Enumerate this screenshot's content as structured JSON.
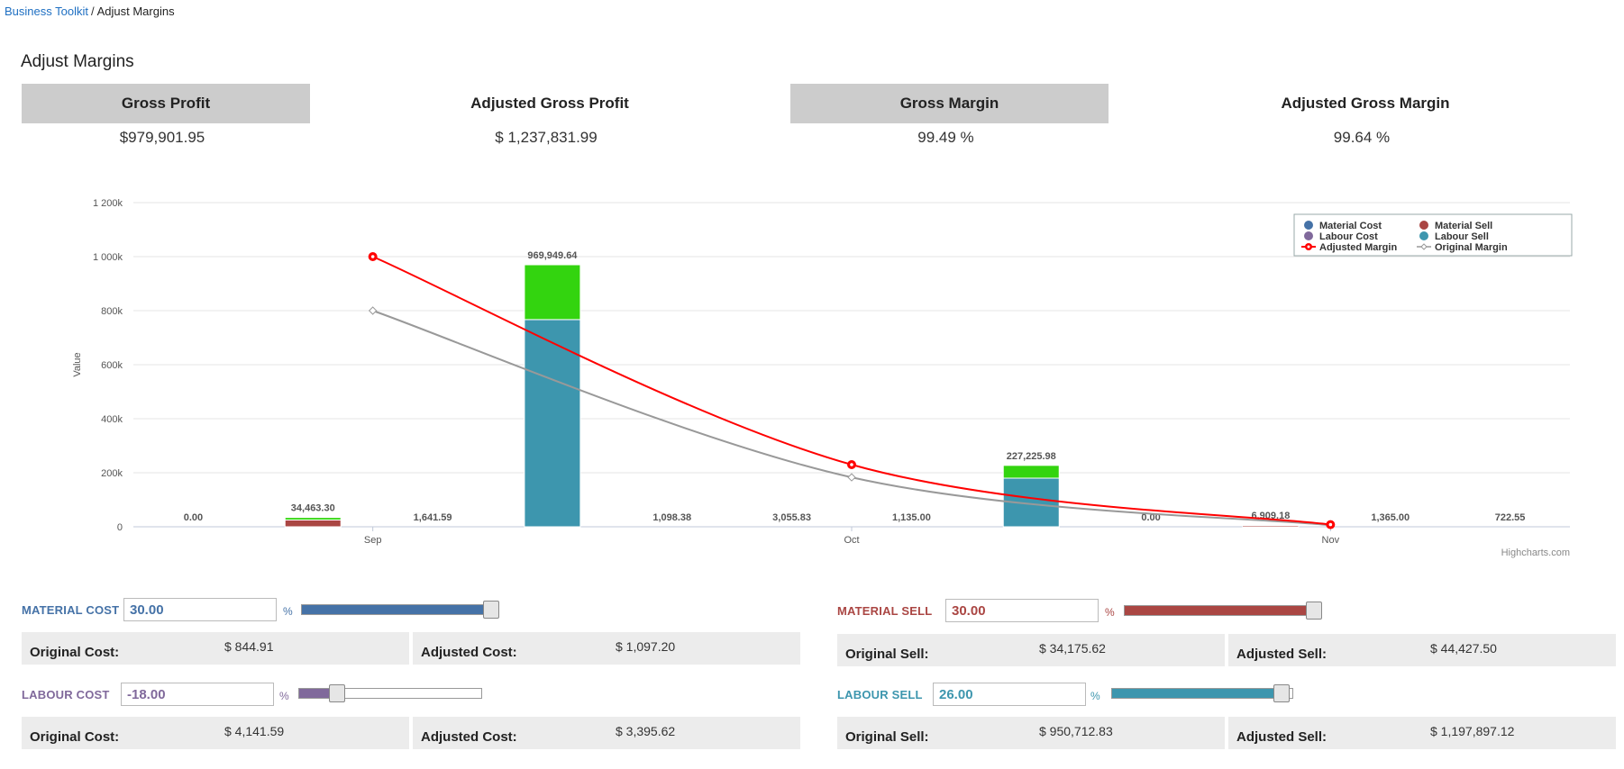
{
  "breadcrumb": {
    "parent": "Business Toolkit",
    "separator": "/",
    "current": "Adjust Margins"
  },
  "page_title": "Adjust Margins",
  "kpis": [
    {
      "label": "Gross Profit",
      "value": "$979,901.95"
    },
    {
      "label": "Adjusted Gross Profit",
      "value": "$ 1,237,831.99"
    },
    {
      "label": "Gross Margin",
      "value": "99.49 %"
    },
    {
      "label": "Adjusted Gross Margin",
      "value": "99.64 %"
    }
  ],
  "chart_data": {
    "type": "bar",
    "ylabel": "Value",
    "credit": "Highcharts.com",
    "ylim": [
      0,
      1200000
    ],
    "y_ticks": [
      0,
      200000,
      400000,
      600000,
      800000,
      1000000,
      1200000
    ],
    "y_tick_labels": [
      "0",
      "200k",
      "400k",
      "600k",
      "800k",
      "1 000k",
      "1 200k"
    ],
    "categories": [
      "Sep",
      "Oct",
      "Nov"
    ],
    "colors": {
      "material_cost": "#4572a7",
      "material_sell": "#aa4643",
      "labour_cost": "#80699b",
      "labour_sell": "#3d96ae",
      "adjusted_margin": "#ff0000",
      "original_margin": "#999999",
      "margin_stack": "#33d40f"
    },
    "legend": {
      "position": "top-right",
      "items": [
        {
          "name": "Material Cost",
          "color": "#4572a7",
          "kind": "dot"
        },
        {
          "name": "Material Sell",
          "color": "#aa4643",
          "kind": "dot"
        },
        {
          "name": "Labour Cost",
          "color": "#80699b",
          "kind": "dot"
        },
        {
          "name": "Labour Sell",
          "color": "#3d96ae",
          "kind": "dot"
        },
        {
          "name": "Adjusted Margin",
          "color": "#ff0000",
          "kind": "line-red"
        },
        {
          "name": "Original Margin",
          "color": "#999999",
          "kind": "line-grey"
        }
      ]
    },
    "columns": [
      {
        "category": 0,
        "slot": 0,
        "segments": [],
        "label": "0.00"
      },
      {
        "category": 0,
        "slot": 1,
        "segments": [
          {
            "series": "material_sell",
            "value": 25000
          },
          {
            "series": "margin_stack",
            "value": 9463.3
          }
        ],
        "label": "34,463.30"
      },
      {
        "category": 0,
        "slot": 2,
        "segments": [],
        "label": "1,641.59"
      },
      {
        "category": 0,
        "slot": 3,
        "segments": [
          {
            "series": "labour_sell",
            "value": 767000
          },
          {
            "series": "margin_stack",
            "value": 202949.64
          }
        ],
        "label": "969,949.64"
      },
      {
        "category": 1,
        "slot": 0,
        "segments": [],
        "label": "1,098.38"
      },
      {
        "category": 1,
        "slot": 1,
        "segments": [],
        "label": "3,055.83"
      },
      {
        "category": 1,
        "slot": 2,
        "segments": [],
        "label": "1,135.00"
      },
      {
        "category": 1,
        "slot": 3,
        "segments": [
          {
            "series": "labour_sell",
            "value": 180000
          },
          {
            "series": "margin_stack",
            "value": 47225.98
          }
        ],
        "label": "227,225.98"
      },
      {
        "category": 2,
        "slot": 0,
        "segments": [],
        "label": "0.00"
      },
      {
        "category": 2,
        "slot": 1,
        "segments": [
          {
            "series": "material_sell",
            "value": 5000
          },
          {
            "series": "margin_stack",
            "value": 1909.18
          }
        ],
        "label": "6,909.18"
      },
      {
        "category": 2,
        "slot": 2,
        "segments": [],
        "label": "1,365.00"
      },
      {
        "category": 2,
        "slot": 3,
        "segments": [],
        "label": "722.55"
      }
    ],
    "series_lines": [
      {
        "name": "Adjusted Margin",
        "values": [
          1000000,
          230000,
          8000
        ]
      },
      {
        "name": "Original Margin",
        "values": [
          800000,
          183000,
          6000
        ]
      }
    ]
  },
  "controls": {
    "material_cost": {
      "label": "MATERIAL COST",
      "input_value": "30.00",
      "percent_sign": "%",
      "slider_fraction": 1.0,
      "original_label": "Original Cost:",
      "original_value": "$ 844.91",
      "adjusted_label": "Adjusted Cost:",
      "adjusted_value": "$ 1,097.20"
    },
    "labour_cost": {
      "label": "LABOUR COST",
      "input_value": "-18.00",
      "percent_sign": "%",
      "slider_fraction": 0.21,
      "original_label": "Original Cost:",
      "original_value": "$ 4,141.59",
      "adjusted_label": "Adjusted Cost:",
      "adjusted_value": "$ 3,395.62"
    },
    "material_sell": {
      "label": "MATERIAL SELL",
      "input_value": "30.00",
      "percent_sign": "%",
      "slider_fraction": 1.0,
      "original_label": "Original Sell:",
      "original_value": "$ 34,175.62",
      "adjusted_label": "Adjusted Sell:",
      "adjusted_value": "$ 44,427.50"
    },
    "labour_sell": {
      "label": "LABOUR SELL",
      "input_value": "26.00",
      "percent_sign": "%",
      "slider_fraction": 0.94,
      "original_label": "Original Sell:",
      "original_value": "$ 950,712.83",
      "adjusted_label": "Adjusted Sell:",
      "adjusted_value": "$ 1,197,897.12"
    }
  }
}
